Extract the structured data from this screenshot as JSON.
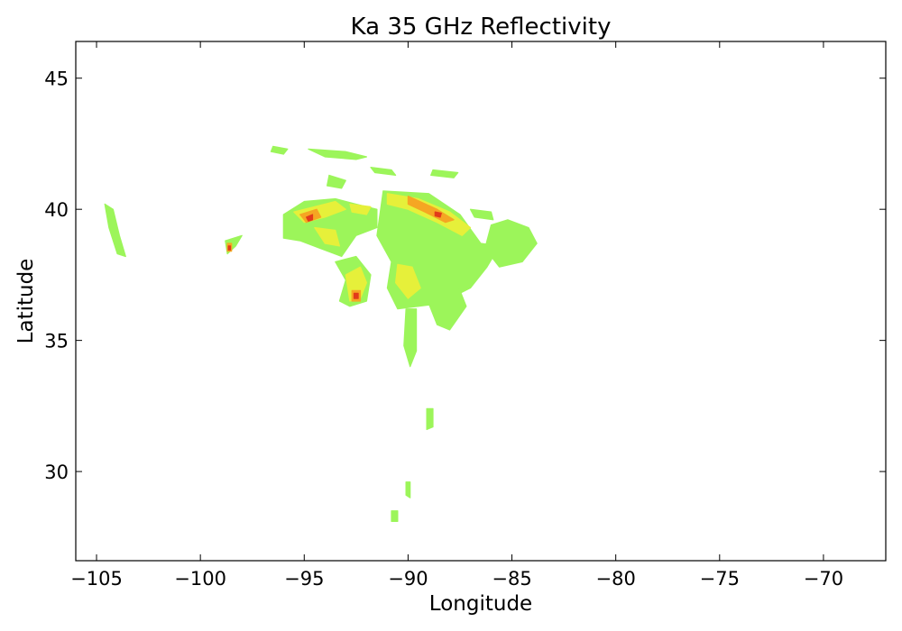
{
  "chart_data": {
    "type": "heatmap",
    "title": "Ka 35 GHz Reflectivity",
    "xlabel": "Longitude",
    "ylabel": "Latitude",
    "xlim": [
      -106.0,
      -67.0
    ],
    "ylim": [
      26.6,
      46.4
    ],
    "xticks": [
      -105,
      -100,
      -95,
      -90,
      -85,
      -80,
      -75,
      -70
    ],
    "xtick_labels": [
      "−105",
      "−100",
      "−95",
      "−90",
      "−85",
      "−80",
      "−75",
      "−70"
    ],
    "yticks": [
      30,
      35,
      40,
      45
    ],
    "ytick_labels": [
      "30",
      "35",
      "40",
      "45"
    ],
    "grid": false,
    "colors": {
      "low": "#9cf55a",
      "mid": "#e6f03a",
      "high": "#f5a623",
      "peak": "#e23b1a"
    },
    "echo_regions": [
      {
        "level": "low",
        "points": [
          [
            -104.6,
            40.2
          ],
          [
            -104.2,
            40.0
          ],
          [
            -103.9,
            39.0
          ],
          [
            -103.6,
            38.2
          ],
          [
            -104.0,
            38.3
          ],
          [
            -104.4,
            39.3
          ]
        ]
      },
      {
        "level": "low",
        "points": [
          [
            -98.8,
            38.8
          ],
          [
            -98.0,
            39.0
          ],
          [
            -98.3,
            38.6
          ],
          [
            -98.7,
            38.3
          ]
        ]
      },
      {
        "level": "low",
        "points": [
          [
            -96.0,
            39.8
          ],
          [
            -95.0,
            40.3
          ],
          [
            -93.5,
            40.4
          ],
          [
            -92.5,
            40.2
          ],
          [
            -91.5,
            40.0
          ],
          [
            -91.5,
            39.3
          ],
          [
            -92.5,
            39.0
          ],
          [
            -93.2,
            38.2
          ],
          [
            -94.2,
            38.5
          ],
          [
            -95.2,
            38.8
          ],
          [
            -96.0,
            38.9
          ]
        ]
      },
      {
        "level": "low",
        "points": [
          [
            -93.5,
            38.0
          ],
          [
            -92.5,
            38.2
          ],
          [
            -91.8,
            37.5
          ],
          [
            -92.0,
            36.5
          ],
          [
            -92.8,
            36.3
          ],
          [
            -93.3,
            36.5
          ],
          [
            -93.0,
            37.3
          ]
        ]
      },
      {
        "level": "low",
        "points": [
          [
            -91.2,
            40.7
          ],
          [
            -89.0,
            40.6
          ],
          [
            -87.5,
            39.8
          ],
          [
            -86.5,
            38.7
          ],
          [
            -85.6,
            38.6
          ],
          [
            -86.2,
            37.8
          ],
          [
            -87.0,
            37.0
          ],
          [
            -88.5,
            36.4
          ],
          [
            -89.5,
            36.3
          ],
          [
            -90.5,
            36.2
          ],
          [
            -91.0,
            37.0
          ],
          [
            -90.8,
            38.0
          ],
          [
            -91.5,
            39.0
          ]
        ]
      },
      {
        "level": "low",
        "points": [
          [
            -86.0,
            39.4
          ],
          [
            -85.2,
            39.6
          ],
          [
            -84.2,
            39.3
          ],
          [
            -83.8,
            38.7
          ],
          [
            -84.5,
            38.0
          ],
          [
            -85.6,
            37.8
          ],
          [
            -86.3,
            38.5
          ]
        ]
      },
      {
        "level": "low",
        "points": [
          [
            -88.8,
            37.2
          ],
          [
            -87.6,
            37.1
          ],
          [
            -87.2,
            36.3
          ],
          [
            -88.0,
            35.4
          ],
          [
            -88.6,
            35.6
          ],
          [
            -89.0,
            36.4
          ]
        ]
      },
      {
        "level": "low",
        "points": [
          [
            -90.1,
            36.2
          ],
          [
            -89.6,
            36.2
          ],
          [
            -89.6,
            34.6
          ],
          [
            -89.9,
            34.0
          ],
          [
            -90.2,
            34.8
          ]
        ]
      },
      {
        "level": "low",
        "points": [
          [
            -89.1,
            32.4
          ],
          [
            -88.8,
            32.4
          ],
          [
            -88.8,
            31.7
          ],
          [
            -89.1,
            31.6
          ]
        ]
      },
      {
        "level": "low",
        "points": [
          [
            -90.1,
            29.6
          ],
          [
            -89.9,
            29.6
          ],
          [
            -89.9,
            29.0
          ],
          [
            -90.1,
            29.1
          ]
        ]
      },
      {
        "level": "low",
        "points": [
          [
            -90.8,
            28.5
          ],
          [
            -90.5,
            28.5
          ],
          [
            -90.5,
            28.1
          ],
          [
            -90.8,
            28.1
          ]
        ]
      },
      {
        "level": "low",
        "points": [
          [
            -94.8,
            42.3
          ],
          [
            -93.0,
            42.2
          ],
          [
            -92.0,
            42.0
          ],
          [
            -92.5,
            41.9
          ],
          [
            -94.0,
            42.0
          ]
        ]
      },
      {
        "level": "low",
        "points": [
          [
            -91.8,
            41.6
          ],
          [
            -90.8,
            41.5
          ],
          [
            -90.6,
            41.3
          ],
          [
            -91.6,
            41.4
          ]
        ]
      },
      {
        "level": "low",
        "points": [
          [
            -88.8,
            41.5
          ],
          [
            -87.6,
            41.4
          ],
          [
            -87.8,
            41.2
          ],
          [
            -88.9,
            41.3
          ]
        ]
      },
      {
        "level": "low",
        "points": [
          [
            -96.5,
            42.4
          ],
          [
            -95.8,
            42.3
          ],
          [
            -96.0,
            42.1
          ],
          [
            -96.6,
            42.2
          ]
        ]
      },
      {
        "level": "low",
        "points": [
          [
            -93.8,
            41.3
          ],
          [
            -93.0,
            41.1
          ],
          [
            -93.2,
            40.8
          ],
          [
            -93.9,
            40.9
          ]
        ]
      },
      {
        "level": "low",
        "points": [
          [
            -87.0,
            40.0
          ],
          [
            -86.0,
            39.9
          ],
          [
            -85.9,
            39.6
          ],
          [
            -86.8,
            39.7
          ]
        ]
      },
      {
        "level": "mid",
        "points": [
          [
            -95.5,
            39.9
          ],
          [
            -94.5,
            40.1
          ],
          [
            -93.5,
            40.3
          ],
          [
            -93.0,
            40.0
          ],
          [
            -94.0,
            39.7
          ],
          [
            -95.0,
            39.5
          ]
        ]
      },
      {
        "level": "mid",
        "points": [
          [
            -91.0,
            40.6
          ],
          [
            -89.5,
            40.4
          ],
          [
            -88.0,
            39.9
          ],
          [
            -87.0,
            39.3
          ],
          [
            -87.4,
            39.0
          ],
          [
            -88.6,
            39.5
          ],
          [
            -90.0,
            40.0
          ],
          [
            -91.0,
            40.2
          ]
        ]
      },
      {
        "level": "mid",
        "points": [
          [
            -93.0,
            37.5
          ],
          [
            -92.3,
            37.8
          ],
          [
            -92.0,
            37.2
          ],
          [
            -92.3,
            36.6
          ],
          [
            -92.8,
            36.5
          ],
          [
            -92.9,
            37.0
          ]
        ]
      },
      {
        "level": "mid",
        "points": [
          [
            -90.5,
            37.9
          ],
          [
            -89.8,
            37.8
          ],
          [
            -89.4,
            37.0
          ],
          [
            -90.0,
            36.6
          ],
          [
            -90.6,
            37.2
          ]
        ]
      },
      {
        "level": "mid",
        "points": [
          [
            -94.5,
            39.3
          ],
          [
            -93.5,
            39.2
          ],
          [
            -93.3,
            38.6
          ],
          [
            -94.0,
            38.7
          ]
        ]
      },
      {
        "level": "mid",
        "points": [
          [
            -92.8,
            40.2
          ],
          [
            -91.8,
            40.1
          ],
          [
            -92.0,
            39.8
          ],
          [
            -92.7,
            39.9
          ]
        ]
      },
      {
        "level": "high",
        "points": [
          [
            -95.2,
            39.8
          ],
          [
            -94.4,
            40.0
          ],
          [
            -94.2,
            39.7
          ],
          [
            -94.9,
            39.5
          ]
        ]
      },
      {
        "level": "high",
        "points": [
          [
            -90.0,
            40.5
          ],
          [
            -88.6,
            40.0
          ],
          [
            -87.8,
            39.6
          ],
          [
            -88.2,
            39.5
          ],
          [
            -89.2,
            39.9
          ],
          [
            -90.0,
            40.2
          ]
        ]
      },
      {
        "level": "high",
        "points": [
          [
            -92.7,
            36.9
          ],
          [
            -92.3,
            36.9
          ],
          [
            -92.3,
            36.5
          ],
          [
            -92.7,
            36.5
          ]
        ]
      },
      {
        "level": "high",
        "points": [
          [
            -98.7,
            38.7
          ],
          [
            -98.5,
            38.7
          ],
          [
            -98.5,
            38.4
          ],
          [
            -98.7,
            38.4
          ]
        ]
      },
      {
        "level": "peak",
        "points": [
          [
            -94.9,
            39.7
          ],
          [
            -94.6,
            39.8
          ],
          [
            -94.6,
            39.6
          ],
          [
            -94.8,
            39.55
          ]
        ]
      },
      {
        "level": "peak",
        "points": [
          [
            -88.7,
            39.9
          ],
          [
            -88.4,
            39.85
          ],
          [
            -88.45,
            39.7
          ],
          [
            -88.7,
            39.75
          ]
        ]
      },
      {
        "level": "peak",
        "points": [
          [
            -92.6,
            36.8
          ],
          [
            -92.4,
            36.8
          ],
          [
            -92.4,
            36.6
          ],
          [
            -92.6,
            36.6
          ]
        ]
      },
      {
        "level": "peak",
        "points": [
          [
            -98.65,
            38.6
          ],
          [
            -98.55,
            38.6
          ],
          [
            -98.55,
            38.45
          ],
          [
            -98.65,
            38.45
          ]
        ]
      }
    ]
  }
}
